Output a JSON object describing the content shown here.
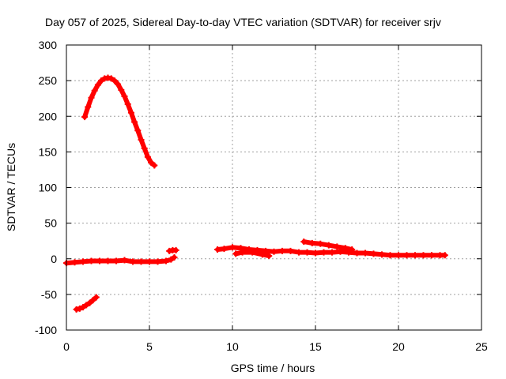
{
  "chart_data": {
    "type": "scatter",
    "title": "Day 057 of 2025, Sidereal Day-to-day VTEC variation (SDTVAR) for receiver srjv",
    "xlabel": "GPS time / hours",
    "ylabel": "SDTVAR / TECUs",
    "xlim": [
      0,
      25
    ],
    "ylim": [
      -100,
      300
    ],
    "xticks": [
      0,
      5,
      10,
      15,
      20,
      25
    ],
    "yticks": [
      -100,
      -50,
      0,
      50,
      100,
      150,
      200,
      250,
      300
    ],
    "grid": true,
    "marker": "plus",
    "series_color": "#ff0000",
    "series": [
      {
        "name": "arc-high",
        "x": [
          1.1,
          1.3,
          1.5,
          1.7,
          1.9,
          2.1,
          2.3,
          2.5,
          2.7,
          2.9,
          3.1,
          3.3,
          3.5,
          3.7,
          3.9,
          4.1,
          4.3,
          4.5,
          4.7,
          4.9,
          5.1,
          5.3
        ],
        "y": [
          199,
          213,
          226,
          236,
          244,
          250,
          253,
          254,
          253,
          250,
          245,
          237,
          228,
          217,
          205,
          192,
          180,
          167,
          155,
          143,
          135,
          131
        ]
      },
      {
        "name": "arc-negative",
        "x": [
          0.6,
          0.8,
          1.0,
          1.2,
          1.4,
          1.6,
          1.8
        ],
        "y": [
          -71,
          -70,
          -68,
          -65,
          -62,
          -58,
          -54
        ]
      },
      {
        "name": "arc-zero",
        "x": [
          0.0,
          0.5,
          1.0,
          1.5,
          2.0,
          2.5,
          3.0,
          3.5,
          4.0,
          4.5,
          5.0,
          5.5,
          6.0,
          6.3,
          6.5
        ],
        "y": [
          -6,
          -5,
          -4,
          -3,
          -3,
          -3,
          -3,
          -2,
          -4,
          -4,
          -4,
          -4,
          -3,
          -1,
          2
        ]
      },
      {
        "name": "arc-zero-end",
        "x": [
          6.2,
          6.4,
          6.6
        ],
        "y": [
          11,
          12,
          12
        ]
      },
      {
        "name": "arc-mid",
        "x": [
          9.1,
          9.5,
          10.0,
          10.5,
          11.0,
          11.5,
          12.0,
          12.5,
          13.0,
          13.5,
          14.0,
          14.5,
          15.0,
          15.5,
          16.0,
          16.5,
          17.0,
          17.5,
          18.0,
          18.5,
          19.0,
          19.5,
          20.0,
          20.5,
          21.0,
          21.5,
          22.0,
          22.5,
          22.8
        ],
        "y": [
          13,
          14,
          16,
          15,
          13,
          12,
          11,
          10,
          11,
          11,
          9,
          9,
          8,
          9,
          9,
          10,
          9,
          8,
          8,
          7,
          6,
          5,
          5,
          5,
          5,
          5,
          5,
          5,
          5
        ]
      },
      {
        "name": "arc-upper-mid",
        "x": [
          14.3,
          14.8,
          15.3,
          15.8,
          16.3,
          16.8,
          17.2
        ],
        "y": [
          24,
          22,
          21,
          19,
          17,
          15,
          13
        ]
      },
      {
        "name": "arc-mid-lower",
        "x": [
          10.2,
          10.6,
          11.2,
          11.8,
          12.2
        ],
        "y": [
          7,
          9,
          9,
          6,
          4
        ]
      }
    ]
  }
}
